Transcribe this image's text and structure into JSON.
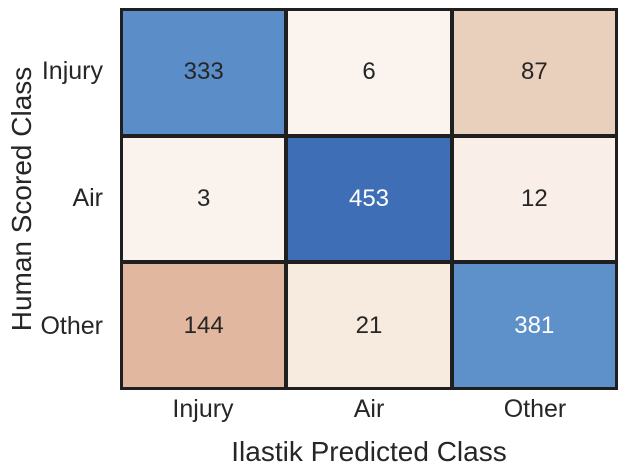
{
  "chart_data": {
    "type": "heatmap",
    "title": "",
    "xlabel": "Ilastik Predicted Class",
    "ylabel": "Human Scored Class",
    "x_categories": [
      "Injury",
      "Air",
      "Other"
    ],
    "y_categories": [
      "Injury",
      "Air",
      "Other"
    ],
    "values": [
      [
        333,
        6,
        87
      ],
      [
        3,
        453,
        12
      ],
      [
        144,
        21,
        381
      ]
    ],
    "cell_colors": [
      [
        "#5b8ec9",
        "#faf3ee",
        "#e9d0bd"
      ],
      [
        "#faf2ec",
        "#3e6eb5",
        "#f9efe8"
      ],
      [
        "#e2b79f",
        "#f7eade",
        "#5e90c9"
      ]
    ],
    "text_colors": [
      [
        "#262626",
        "#262626",
        "#262626"
      ],
      [
        "#262626",
        "#ffffff",
        "#262626"
      ],
      [
        "#262626",
        "#262626",
        "#ffffff"
      ]
    ],
    "grid_line_color": "#1f1f1f",
    "axis_text_color": "#262626",
    "legend_position": "none",
    "grid": false
  }
}
